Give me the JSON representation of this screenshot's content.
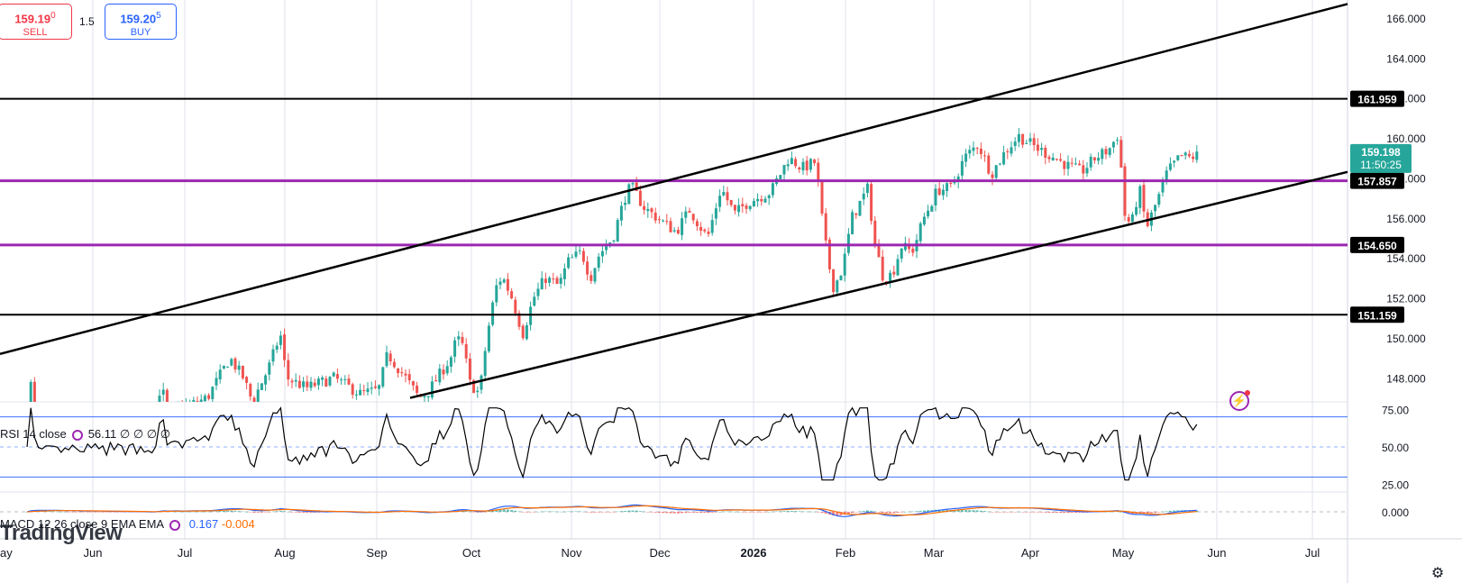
{
  "trade_panel": {
    "sell_price_main": "159.19",
    "sell_price_sup": "0",
    "sell_label": "SELL",
    "spread": "1.5",
    "buy_price_main": "159.20",
    "buy_price_sup": "5",
    "buy_label": "BUY"
  },
  "rsi_legend": {
    "label": "RSI 14 close",
    "value": "56.11",
    "extra": "∅ ∅ ∅ ∅"
  },
  "macd_legend": {
    "label": "MACD 12 26 close 9 EMA EMA",
    "value1": "0.167",
    "value2": "-0.004"
  },
  "watermark": "TradingView",
  "colors": {
    "up": "#26a69a",
    "down": "#ef5350",
    "horizontal_line": "#000000",
    "magenta_line": "#9c27b0",
    "channel": "#000000",
    "rsi_line": "#000000",
    "rsi_bands": "#2962ff",
    "macd_line": "#2962ff",
    "signal_line": "#ff6d00",
    "last_price_bg": "#26a69a"
  },
  "chart_data": {
    "type": "candlestick",
    "x_axis_labels": [
      "ay",
      "Jun",
      "Jul",
      "Aug",
      "Sep",
      "Oct",
      "Nov",
      "Dec",
      "2026",
      "Feb",
      "Mar",
      "Apr",
      "May",
      "Jun",
      "Jul"
    ],
    "price_axis": {
      "ylim": [
        146.8,
        166.9
      ],
      "tick_labels": [
        "166.000",
        "164.000",
        "162.000",
        "160.000",
        "158.000",
        "156.000",
        "154.000",
        "152.000",
        "150.000",
        "148.000"
      ]
    },
    "horizontal_levels": [
      {
        "value": 161.959,
        "label": "161.959",
        "color": "#000000"
      },
      {
        "value": 157.857,
        "label": "157.857",
        "color": "#9c27b0"
      },
      {
        "value": 154.65,
        "label": "154.650",
        "color": "#9c27b0"
      },
      {
        "value": 151.159,
        "label": "151.159",
        "color": "#000000"
      }
    ],
    "last_price": {
      "value": 159.198,
      "label": "159.198",
      "countdown": "11:50:25"
    },
    "channel": {
      "upper": [
        [
          0,
          149.2
        ],
        [
          1495,
          166.7
        ]
      ],
      "lower": [
        [
          455,
          147.0
        ],
        [
          1495,
          158.3
        ]
      ]
    },
    "rsi": {
      "label": "RSI 14 close",
      "levels": [
        70,
        50,
        30
      ],
      "tick_labels": [
        "75.00",
        "50.00",
        "25.00"
      ],
      "ylim": [
        20,
        80
      ]
    },
    "macd": {
      "label": "MACD 12 26 close 9 EMA EMA",
      "tick_labels": [
        "0.000"
      ]
    }
  }
}
